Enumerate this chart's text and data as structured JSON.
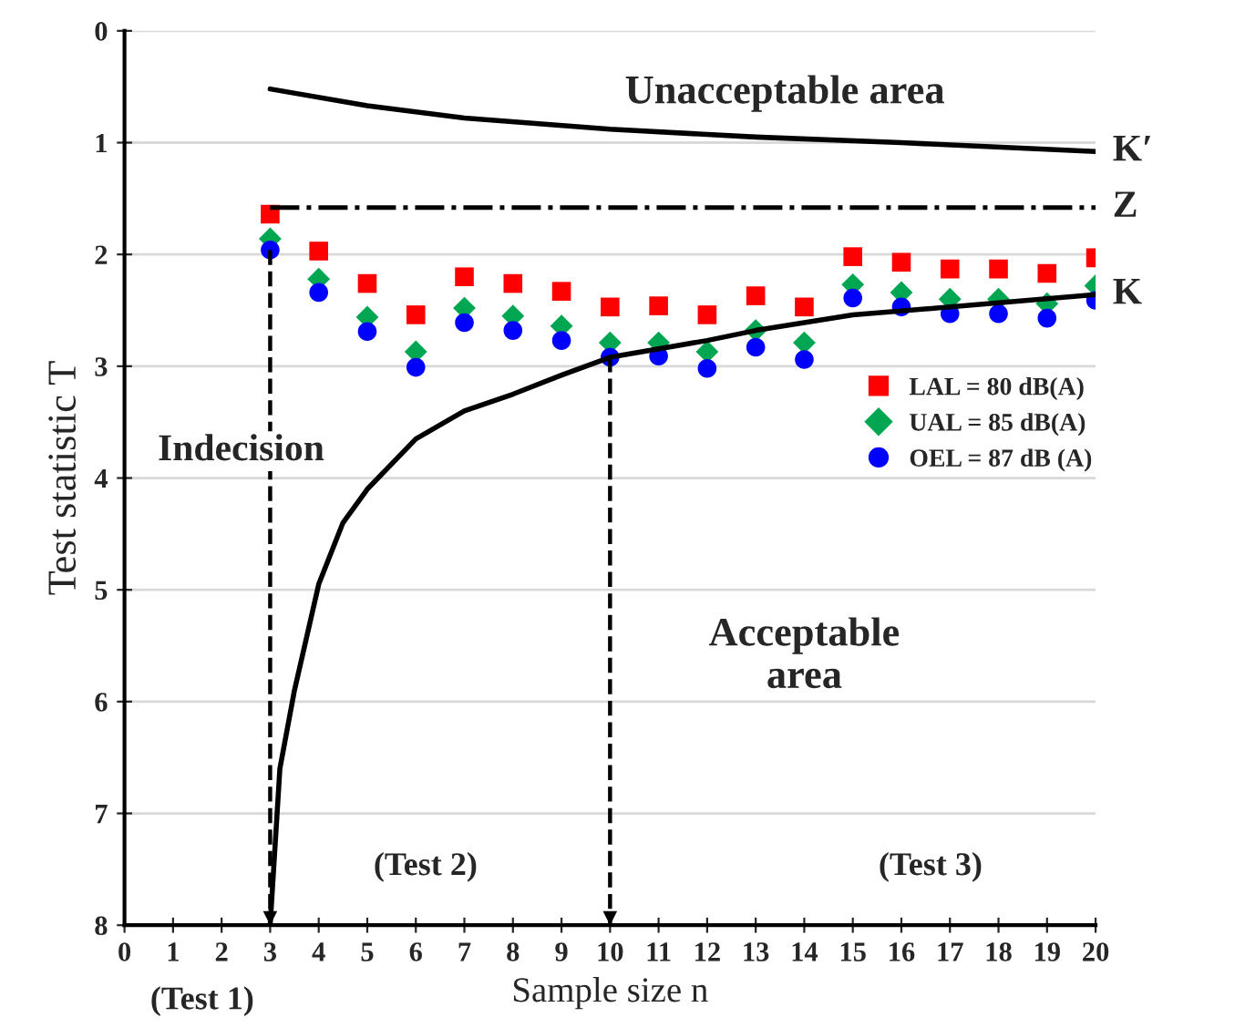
{
  "chart_data": {
    "type": "scatter",
    "xlabel": "Sample size n",
    "ylabel": "Test statistic T",
    "xlim": [
      0,
      20
    ],
    "ylim": [
      8,
      0
    ],
    "xticks": [
      0,
      1,
      2,
      3,
      4,
      5,
      6,
      7,
      8,
      9,
      10,
      11,
      12,
      13,
      14,
      15,
      16,
      17,
      18,
      19,
      20
    ],
    "yticks": [
      0,
      1,
      2,
      3,
      4,
      5,
      6,
      7,
      8
    ],
    "grid": "y",
    "legend": "right",
    "series": [
      {
        "name": "LAL = 80 dB(A)",
        "marker": "square",
        "color": "#ff0000",
        "x": [
          3,
          4,
          5,
          6,
          7,
          8,
          9,
          10,
          11,
          12,
          13,
          14,
          15,
          16,
          17,
          18,
          19,
          20
        ],
        "values": [
          1.64,
          1.97,
          2.26,
          2.54,
          2.2,
          2.26,
          2.33,
          2.47,
          2.46,
          2.54,
          2.37,
          2.47,
          2.02,
          2.07,
          2.13,
          2.13,
          2.17,
          2.03
        ]
      },
      {
        "name": "UAL = 85 dB(A)",
        "marker": "diamond",
        "color": "#00a651",
        "x": [
          3,
          4,
          5,
          6,
          7,
          8,
          9,
          10,
          11,
          12,
          13,
          14,
          15,
          16,
          17,
          18,
          19,
          20
        ],
        "values": [
          1.86,
          2.22,
          2.56,
          2.87,
          2.48,
          2.55,
          2.64,
          2.79,
          2.79,
          2.87,
          2.68,
          2.79,
          2.27,
          2.34,
          2.4,
          2.4,
          2.44,
          2.28
        ]
      },
      {
        "name": "OEL = 87 dB (A)",
        "marker": "circle",
        "color": "#0000ff",
        "x": [
          3,
          4,
          5,
          6,
          7,
          8,
          9,
          10,
          11,
          12,
          13,
          14,
          15,
          16,
          17,
          18,
          19,
          20
        ],
        "values": [
          1.96,
          2.34,
          2.69,
          3.01,
          2.61,
          2.68,
          2.77,
          2.92,
          2.91,
          3.02,
          2.83,
          2.94,
          2.39,
          2.47,
          2.53,
          2.53,
          2.57,
          2.41
        ]
      },
      {
        "name": "K",
        "type": "line",
        "line_style": "solid",
        "color": "#000000",
        "x": [
          3,
          3.2,
          3.5,
          4,
          4.5,
          5,
          6,
          7,
          8,
          9,
          10,
          12,
          13,
          15,
          17,
          20
        ],
        "values": [
          8,
          6.6,
          5.9,
          4.95,
          4.4,
          4.1,
          3.65,
          3.4,
          3.25,
          3.08,
          2.92,
          2.77,
          2.68,
          2.54,
          2.47,
          2.36
        ]
      },
      {
        "name": "K′",
        "type": "line",
        "line_style": "solid",
        "color": "#000000",
        "x": [
          3,
          5,
          7,
          10,
          13,
          16,
          20
        ],
        "values": [
          0.52,
          0.67,
          0.78,
          0.88,
          0.95,
          1.0,
          1.08
        ]
      },
      {
        "type": "line",
        "line_style": "dashed",
        "color": "#000000",
        "x": [
          3,
          3
        ],
        "values": [
          1.96,
          8
        ]
      },
      {
        "type": "line",
        "line_style": "dashed",
        "color": "#000000",
        "x": [
          10,
          10
        ],
        "values": [
          2.92,
          8
        ]
      }
    ],
    "ref_lines": [
      {
        "axis": "y",
        "value": 1.58,
        "label": "Z",
        "line_style": "dashdot",
        "color": "#000000"
      }
    ],
    "annotations": [
      "Unacceptable area",
      "Indecision",
      "Acceptable\narea",
      "(Test 1)",
      "(Test 2)",
      "(Test 3)"
    ]
  }
}
